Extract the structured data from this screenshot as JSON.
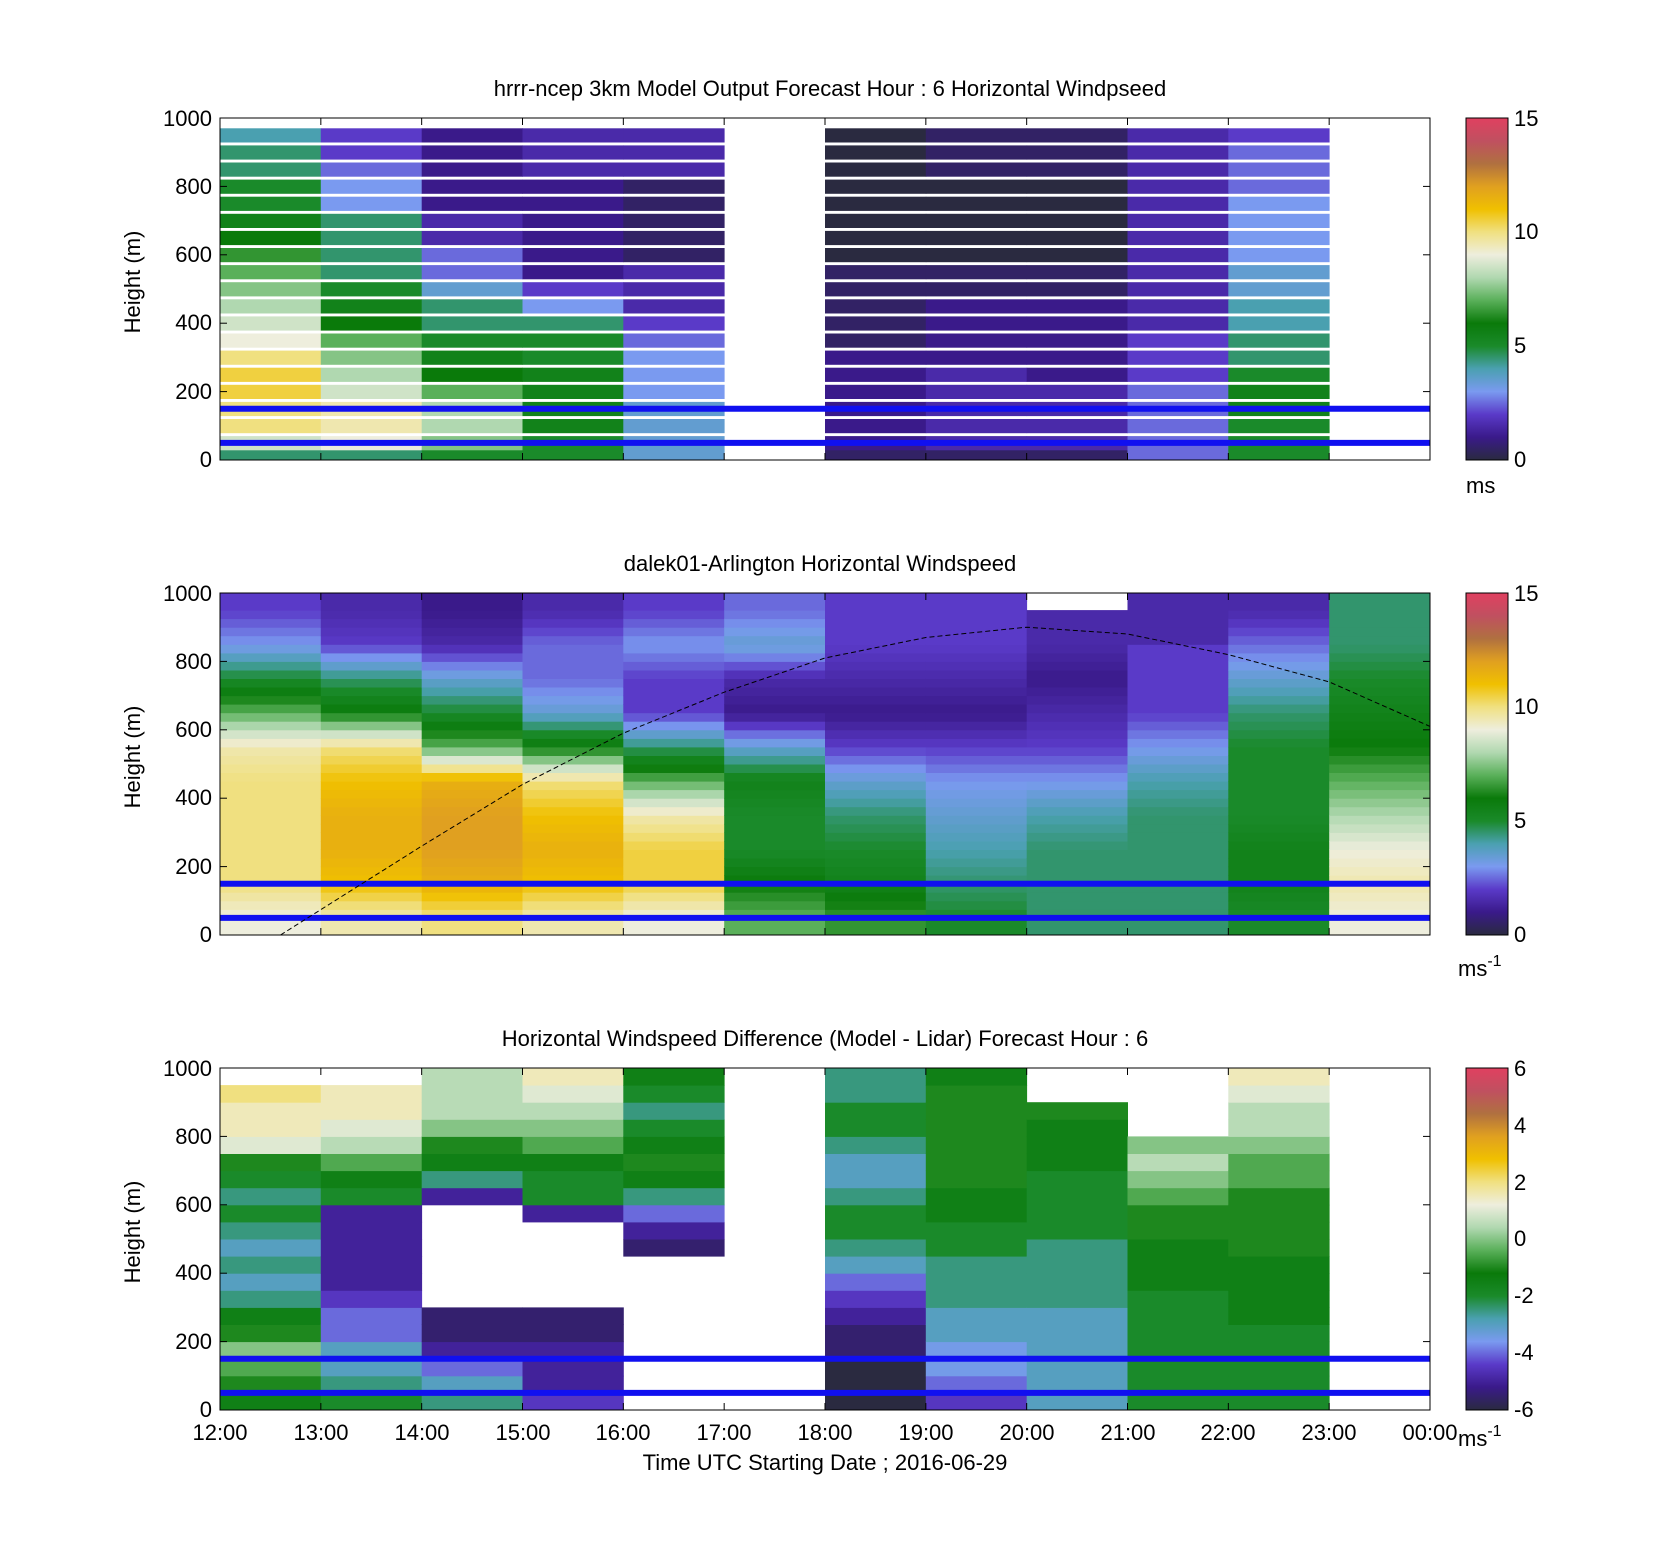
{
  "panels": [
    {
      "title": "hrrr-ncep 3km Model Output   Forecast Hour : 6 Horizontal Windpseed",
      "ylabel": "Height (m)",
      "yticks": [
        "0",
        "200",
        "400",
        "600",
        "800",
        "1000"
      ],
      "colorbar": {
        "ticks": [
          "0",
          "5",
          "10",
          "15"
        ],
        "unit": "ms",
        "unit_exp": ""
      }
    },
    {
      "title": "dalek01-Arlington  Horizontal Windspeed",
      "ylabel": "Height (m)",
      "yticks": [
        "0",
        "200",
        "400",
        "600",
        "800",
        "1000"
      ],
      "colorbar": {
        "ticks": [
          "0",
          "5",
          "10",
          "15"
        ],
        "unit": "ms",
        "unit_exp": "-1"
      }
    },
    {
      "title": "Horizontal Windspeed Difference (Model - Lidar) Forecast Hour : 6",
      "ylabel": "Height (m)",
      "yticks": [
        "0",
        "200",
        "400",
        "600",
        "800",
        "1000"
      ],
      "colorbar": {
        "ticks": [
          "-6",
          "-4",
          "-2",
          "0",
          "2",
          "4",
          "6"
        ],
        "unit": "ms",
        "unit_exp": "-1"
      }
    }
  ],
  "xticks": [
    "12:00",
    "13:00",
    "14:00",
    "15:00",
    "16:00",
    "17:00",
    "18:00",
    "19:00",
    "20:00",
    "21:00",
    "22:00",
    "23:00",
    "00:00"
  ],
  "xlabel": "Time UTC  Starting Date ; 2016-06-29",
  "colormap": [
    "#2a2a40",
    "#3a1a8a",
    "#5a3ac8",
    "#7a9af0",
    "#4aa0b0",
    "#1a8a2a",
    "#0a7a0a",
    "#5ab05a",
    "#b0d8b0",
    "#eeeedd",
    "#f0e080",
    "#f0c000",
    "#e0a020",
    "#b07040",
    "#c05060",
    "#e04060"
  ],
  "chart_data": [
    {
      "type": "heatmap",
      "title": "hrrr-ncep 3km Model Output   Forecast Hour : 6 Horizontal Windpseed",
      "ylabel": "Height (m)",
      "ylim": [
        0,
        1000
      ],
      "x": [
        "12:00",
        "13:00",
        "14:00",
        "15:00",
        "16:00",
        "17:00",
        "18:00",
        "19:00",
        "20:00",
        "21:00",
        "22:00",
        "23:00"
      ],
      "y": [
        10,
        50,
        100,
        150,
        200,
        250,
        300,
        350,
        400,
        450,
        500,
        550,
        600,
        650,
        700,
        750,
        800,
        850,
        900,
        950
      ],
      "clim": [
        0,
        15
      ],
      "colorbar_label": "ms",
      "reference_lines": [
        50,
        150
      ],
      "columns": [
        [
          4.5,
          8.5,
          10,
          10,
          10.5,
          10.5,
          10,
          9,
          8.5,
          8,
          7.5,
          7,
          6.5,
          6,
          5.5,
          5,
          5,
          4.5,
          4.5,
          4
        ],
        [
          4.5,
          9,
          9.5,
          9.5,
          8.5,
          8,
          7.5,
          7,
          6,
          5.5,
          5,
          4.5,
          4.5,
          4.5,
          4.5,
          3,
          3,
          2.5,
          2,
          2
        ],
        [
          5,
          7.5,
          8,
          8,
          7,
          6,
          5.5,
          5,
          4.5,
          4.5,
          3.5,
          2.5,
          2.5,
          1.5,
          1.5,
          1,
          1,
          1,
          1,
          1
        ],
        [
          5,
          5,
          5.5,
          5.5,
          5.5,
          5.5,
          5,
          5,
          4.5,
          3,
          2,
          1,
          1,
          1,
          1,
          1,
          1,
          1.5,
          1.5,
          1.5
        ],
        [
          3.5,
          3.5,
          3.5,
          3.5,
          3,
          3,
          3,
          2.5,
          2,
          1.5,
          1.5,
          1.5,
          0.5,
          0.5,
          0.5,
          0.5,
          0.5,
          1.5,
          1.5,
          1.5
        ],
        [
          null,
          null,
          null,
          null,
          null,
          null,
          null,
          null,
          null,
          null,
          null,
          null,
          null,
          null,
          null,
          null,
          null,
          null,
          null,
          null
        ],
        [
          0.5,
          1,
          1,
          1,
          1,
          1,
          1,
          0.5,
          0.5,
          0.5,
          0.5,
          0.5,
          0,
          0,
          0,
          0,
          0,
          0,
          0,
          0
        ],
        [
          0.5,
          1.5,
          1.5,
          1.5,
          1.5,
          1.5,
          1,
          1,
          1,
          1,
          0.5,
          0.5,
          0,
          0,
          0,
          0,
          0,
          0.5,
          0.5,
          0.5
        ],
        [
          0.5,
          1.5,
          1.5,
          1.5,
          1.5,
          1,
          1,
          1,
          1,
          1,
          0.5,
          0.5,
          0,
          0,
          0,
          0,
          0,
          0.5,
          0.5,
          0.5
        ],
        [
          2.5,
          2.5,
          2.5,
          2.5,
          2.5,
          2,
          2,
          2,
          1.5,
          1.5,
          1.5,
          1.5,
          1.5,
          1.5,
          1.5,
          1.5,
          1.5,
          1.5,
          1.5,
          1.5
        ],
        [
          5,
          5,
          5,
          5.5,
          5.5,
          5,
          4.5,
          4.5,
          4,
          4,
          3.5,
          3.5,
          3,
          3,
          3,
          3,
          2.5,
          2.5,
          2.5,
          2
        ],
        [
          null,
          null,
          null,
          null,
          null,
          null,
          null,
          null,
          null,
          null,
          null,
          null,
          null,
          null,
          null,
          null,
          null,
          null,
          null,
          null
        ]
      ]
    },
    {
      "type": "heatmap",
      "title": "dalek01-Arlington  Horizontal Windspeed",
      "ylabel": "Height (m)",
      "ylim": [
        0,
        1000
      ],
      "x_range": [
        "12:00",
        "00:00"
      ],
      "clim": [
        0,
        15
      ],
      "colorbar_label": "ms-1",
      "reference_lines": [
        50,
        150
      ],
      "boundary_layer_line": {
        "x_hours": [
          12.6,
          14,
          15,
          16,
          17,
          18,
          19,
          20,
          21,
          22,
          23,
          24
        ],
        "y": [
          0,
          260,
          440,
          590,
          710,
          810,
          870,
          900,
          880,
          820,
          740,
          610
        ]
      },
      "profiles": [
        {
          "x_hours": 12.5,
          "y": [
            50,
            150,
            250,
            350,
            450,
            550,
            650,
            750,
            850,
            950
          ],
          "values": [
            9,
            10,
            10,
            10,
            10,
            9.5,
            7,
            5,
            3,
            2
          ]
        },
        {
          "x_hours": 13.5,
          "y": [
            50,
            150,
            250,
            350,
            450,
            550,
            650,
            750,
            850,
            950
          ],
          "values": [
            9.5,
            11,
            11.5,
            11.5,
            11,
            10,
            6,
            4.5,
            2,
            1.5
          ]
        },
        {
          "x_hours": 14.5,
          "y": [
            50,
            150,
            250,
            350,
            450,
            550,
            650,
            750,
            850,
            950
          ],
          "values": [
            10,
            11.5,
            12,
            12,
            11.5,
            7,
            5,
            3.5,
            1.5,
            1
          ]
        },
        {
          "x_hours": 15.5,
          "y": [
            50,
            150,
            250,
            350,
            450,
            550,
            650,
            750,
            850,
            950
          ],
          "values": [
            9.5,
            11,
            11.5,
            11,
            10,
            6,
            3.5,
            2.5,
            2.5,
            1.5
          ]
        },
        {
          "x_hours": 16.5,
          "y": [
            50,
            150,
            250,
            350,
            450,
            550,
            650,
            750,
            850,
            950
          ],
          "values": [
            9,
            10.5,
            10.5,
            9.5,
            7,
            4.5,
            2,
            2,
            3,
            2
          ]
        },
        {
          "x_hours": 17.5,
          "y": [
            50,
            150,
            250,
            350,
            450,
            550,
            650,
            750,
            850,
            950
          ],
          "values": [
            7,
            6,
            5,
            5,
            5.5,
            3.5,
            1,
            1.5,
            3.5,
            2.5
          ]
        },
        {
          "x_hours": 18.5,
          "y": [
            50,
            150,
            250,
            350,
            450,
            550,
            650,
            750,
            850,
            950
          ],
          "values": [
            6.5,
            5.5,
            5,
            4.5,
            3.5,
            2,
            1,
            1.5,
            2,
            2
          ]
        },
        {
          "x_hours": 19.5,
          "y": [
            50,
            150,
            250,
            350,
            450,
            550,
            650,
            750,
            850,
            950
          ],
          "values": [
            5,
            4.5,
            4,
            3.5,
            3,
            2,
            1,
            1.5,
            2,
            2
          ]
        },
        {
          "x_hours": 20.5,
          "y": [
            50,
            150,
            250,
            350,
            450,
            550,
            650,
            750,
            850,
            950
          ],
          "values": [
            4.5,
            4.5,
            4.5,
            4,
            3,
            2,
            1.5,
            1,
            1.5,
            null
          ]
        },
        {
          "x_hours": 21.5,
          "y": [
            50,
            150,
            250,
            350,
            450,
            550,
            650,
            750,
            850,
            950
          ],
          "values": [
            4.5,
            4.5,
            4.5,
            4.5,
            4,
            3,
            2,
            2,
            null,
            1.5
          ]
        },
        {
          "x_hours": 22.5,
          "y": [
            50,
            150,
            250,
            350,
            450,
            550,
            650,
            750,
            850,
            950
          ],
          "values": [
            5,
            5.5,
            5.5,
            5,
            5,
            5,
            4.5,
            3.5,
            2.5,
            1.5
          ]
        },
        {
          "x_hours": 23.5,
          "y": [
            50,
            150,
            250,
            350,
            450,
            550,
            650,
            750,
            850,
            950
          ],
          "values": [
            9,
            9.5,
            9,
            8,
            7,
            6,
            5.5,
            5,
            4.5,
            4.5
          ]
        }
      ]
    },
    {
      "type": "heatmap",
      "title": "Horizontal Windspeed Difference (Model - Lidar) Forecast Hour : 6",
      "ylabel": "Height (m)",
      "xlabel": "Time UTC  Starting Date ; 2016-06-29",
      "ylim": [
        0,
        1000
      ],
      "x": [
        "12:00",
        "13:00",
        "14:00",
        "15:00",
        "16:00",
        "17:00",
        "18:00",
        "19:00",
        "20:00",
        "21:00",
        "22:00",
        "23:00"
      ],
      "y": [
        25,
        75,
        125,
        175,
        225,
        275,
        325,
        375,
        425,
        475,
        525,
        575,
        625,
        675,
        725,
        775,
        825,
        875,
        925,
        975
      ],
      "clim": [
        -6,
        6
      ],
      "colorbar_label": "ms-1",
      "reference_lines": [
        50,
        150
      ],
      "columns": [
        [
          -1.5,
          -1,
          -0.5,
          0,
          -1,
          -1.5,
          -2.5,
          -3,
          -2.5,
          -3,
          -2.5,
          -2,
          -2.5,
          -2,
          -1,
          1,
          1.5,
          1.5,
          2,
          null
        ],
        [
          -2,
          -2.5,
          -3,
          -3,
          -4,
          -4,
          -4.5,
          -5,
          -5,
          -5,
          -5,
          -5,
          -2,
          -1.5,
          -0.5,
          0.5,
          1,
          1.5,
          1.5,
          null
        ],
        [
          -2.5,
          -3,
          -4,
          -5,
          -5.5,
          -5.5,
          null,
          null,
          null,
          null,
          null,
          null,
          -5,
          -2.5,
          -1.5,
          -1,
          0,
          0.5,
          0.5,
          0.5
        ],
        [
          -4.5,
          -5,
          -5,
          -5,
          -5.5,
          -5.5,
          null,
          null,
          null,
          null,
          null,
          -5,
          -2,
          -2,
          -1.5,
          -0.5,
          0,
          0.5,
          1,
          1.5
        ],
        [
          null,
          null,
          null,
          null,
          null,
          null,
          null,
          null,
          null,
          -5.5,
          -5,
          -4,
          -2.5,
          -1.5,
          -1,
          -1.5,
          -2,
          -2.5,
          -2,
          -1.5
        ],
        [
          null,
          null,
          null,
          null,
          null,
          null,
          null,
          null,
          null,
          null,
          null,
          null,
          null,
          null,
          null,
          null,
          null,
          null,
          null,
          null
        ],
        [
          -6,
          -6,
          -6,
          -5.5,
          -5.5,
          -5,
          -4.5,
          -4,
          -3,
          -2.5,
          -2,
          -2,
          -2.5,
          -3,
          -3,
          -2.5,
          -2,
          -2,
          -2.5,
          -2.5
        ],
        [
          -4.5,
          -4,
          -3.5,
          -3.5,
          -3,
          -3,
          -2.5,
          -2.5,
          -2.5,
          -2,
          -2,
          -1.5,
          -1.5,
          -1,
          -1,
          -1,
          -1,
          -1,
          -1,
          -1.5
        ],
        [
          -3,
          -3,
          -3,
          -3,
          -3,
          -3,
          -2.5,
          -2.5,
          -2.5,
          -2.5,
          -2,
          -2,
          -2,
          -2,
          -1.5,
          -1.5,
          -1.5,
          -1,
          null,
          null
        ],
        [
          -2,
          -2,
          -2,
          -2,
          -2,
          -2,
          -2,
          -1.5,
          -1.5,
          -1.5,
          -1,
          -1,
          -0.5,
          0,
          0.5,
          0,
          null,
          null,
          null,
          null
        ],
        [
          -2,
          -2,
          -2,
          -2,
          -2,
          -1.5,
          -1.5,
          -1.5,
          -1.5,
          -1,
          -1,
          -1,
          -1,
          -0.5,
          -0.5,
          0,
          0.5,
          0.5,
          1,
          1.5
        ],
        [
          null,
          null,
          null,
          null,
          null,
          null,
          null,
          null,
          null,
          null,
          null,
          null,
          null,
          null,
          null,
          null,
          null,
          null,
          null,
          null
        ]
      ]
    }
  ]
}
